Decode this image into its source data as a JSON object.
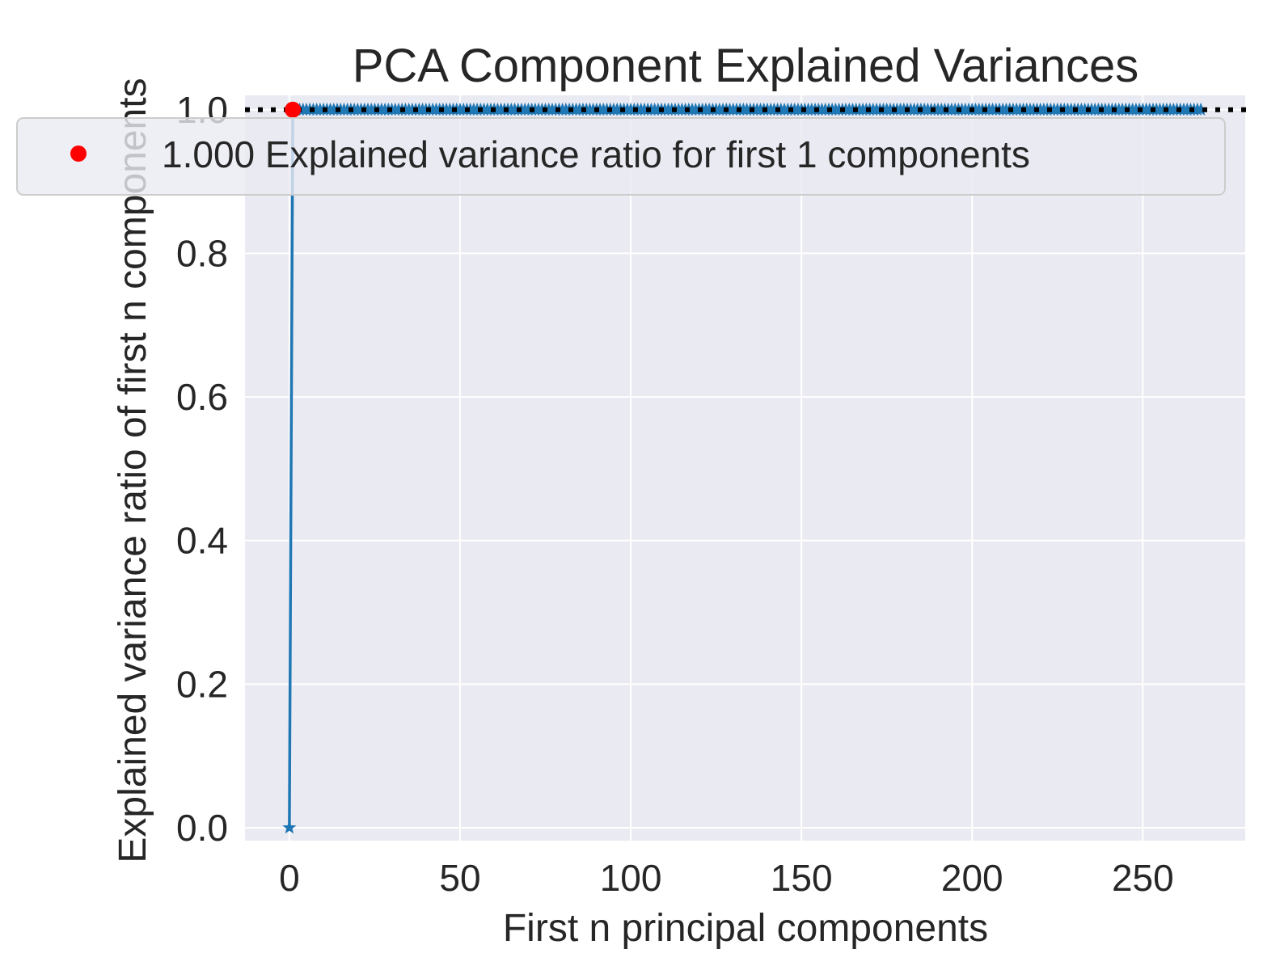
{
  "chart_data": {
    "type": "line",
    "title": "PCA Component Explained Variances",
    "xlabel": "First n principal components",
    "ylabel": "Explained variance ratio of first n components",
    "xlim": [
      -13,
      280
    ],
    "ylim": [
      -0.018,
      1.02
    ],
    "xticks": [
      0,
      50,
      100,
      150,
      200,
      250
    ],
    "xtick_labels": [
      "0",
      "50",
      "100",
      "150",
      "200",
      "250"
    ],
    "yticks": [
      0.0,
      0.2,
      0.4,
      0.6,
      0.8,
      1.0
    ],
    "ytick_labels": [
      "0.0",
      "0.2",
      "0.4",
      "0.6",
      "0.8",
      "1.0"
    ],
    "grid": true,
    "legend_position": "upper-right",
    "series": [
      {
        "kind": "cumulative-line",
        "color": "#1f77b4",
        "marker": "star",
        "x_start": 0,
        "x_end": 267,
        "values_note": "y=0 at x=0, y=1.0 for x=1..267",
        "first_point": [
          0,
          0.0
        ],
        "plateau_value": 1.0
      },
      {
        "kind": "threshold-line",
        "color": "#000000",
        "style": "dotted",
        "y": 1.0
      },
      {
        "kind": "highlight-point",
        "color": "#ff0000",
        "x": 1,
        "y": 1.0
      }
    ],
    "legend": [
      {
        "label": "1.000 Explained variance ratio for first 1 components",
        "color": "#ff0000",
        "marker": "circle"
      }
    ],
    "colors": {
      "plot_background": "#eaeaf2",
      "grid": "#ffffff",
      "line": "#1f77b4",
      "highlight": "#ff0000",
      "threshold": "#000000"
    }
  }
}
